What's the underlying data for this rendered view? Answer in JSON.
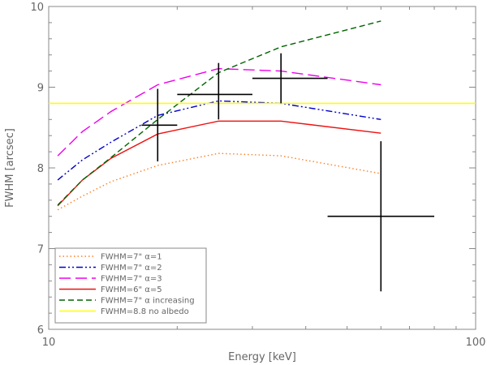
{
  "chart_data": {
    "type": "line",
    "title": "",
    "xlabel": "Energy [keV]",
    "ylabel": "FWHM [arcsec]",
    "xscale": "log",
    "xlim": [
      10,
      100
    ],
    "ylim": [
      6,
      10
    ],
    "x_ticks": [
      {
        "value": 10,
        "label": "10"
      },
      {
        "value": 100,
        "label": "100"
      }
    ],
    "y_ticks": [
      {
        "value": 6,
        "label": "6"
      },
      {
        "value": 7,
        "label": "7"
      },
      {
        "value": 8,
        "label": "8"
      },
      {
        "value": 9,
        "label": "9"
      },
      {
        "value": 10,
        "label": "10"
      }
    ],
    "legend_position": "bottom-left",
    "series": [
      {
        "name": "FWHM=7\" α=1",
        "color": "#ff7f24",
        "dash": "dotted",
        "x": [
          10.5,
          12,
          14,
          18,
          25,
          35,
          60
        ],
        "y": [
          7.48,
          7.65,
          7.83,
          8.03,
          8.18,
          8.15,
          7.93
        ]
      },
      {
        "name": "FWHM=7\" α=2",
        "color": "#0000cd",
        "dash": "dash-dot-dot",
        "x": [
          10.5,
          12,
          14,
          18,
          25,
          35,
          60
        ],
        "y": [
          7.85,
          8.1,
          8.32,
          8.65,
          8.83,
          8.8,
          8.6
        ]
      },
      {
        "name": "FWHM=7\" α=3",
        "color": "#ee00ee",
        "dash": "long-dash",
        "x": [
          10.5,
          12,
          14,
          18,
          25,
          35,
          60
        ],
        "y": [
          8.15,
          8.45,
          8.7,
          9.03,
          9.23,
          9.2,
          9.03
        ]
      },
      {
        "name": "FWHM=6\" α=5",
        "color": "#ee1111",
        "dash": "solid",
        "x": [
          10.5,
          12,
          14,
          18,
          25,
          35,
          60
        ],
        "y": [
          7.53,
          7.85,
          8.12,
          8.42,
          8.58,
          8.58,
          8.43
        ]
      },
      {
        "name": "FWHM=7\" α increasing",
        "color": "#006400",
        "dash": "dashed",
        "x": [
          10.5,
          12,
          14,
          18,
          25,
          35,
          60
        ],
        "y": [
          7.54,
          7.85,
          8.13,
          8.6,
          9.18,
          9.5,
          9.82
        ]
      },
      {
        "name": "FWHM=8.8 no albedo",
        "color": "#ffff00",
        "dash": "solid",
        "x": [
          10,
          100
        ],
        "y": [
          8.8,
          8.8
        ]
      }
    ],
    "error_points": [
      {
        "x": 18,
        "y": 8.53,
        "xerr": [
          16.5,
          20
        ],
        "yerr": [
          8.08,
          8.98
        ]
      },
      {
        "x": 25,
        "y": 8.91,
        "xerr": [
          20,
          30
        ],
        "yerr": [
          8.6,
          9.3
        ]
      },
      {
        "x": 35,
        "y": 9.11,
        "xerr": [
          30,
          45
        ],
        "yerr": [
          8.8,
          9.42
        ]
      },
      {
        "x": 60,
        "y": 7.4,
        "xerr": [
          45,
          80
        ],
        "yerr": [
          6.47,
          8.33
        ]
      }
    ]
  }
}
